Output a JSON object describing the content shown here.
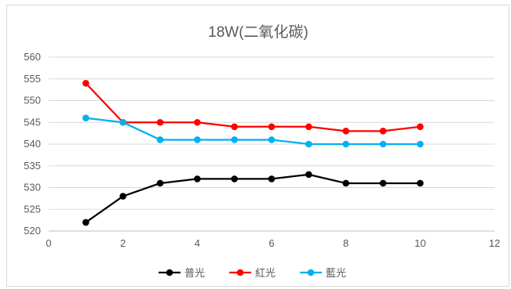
{
  "chart_data": {
    "type": "line",
    "title": "18W(二氧化碳)",
    "xlabel": "",
    "ylabel": "",
    "xlim": [
      0,
      12
    ],
    "ylim": [
      520,
      560
    ],
    "xticks": [
      0,
      2,
      4,
      6,
      8,
      10,
      12
    ],
    "yticks": [
      520,
      525,
      530,
      535,
      540,
      545,
      550,
      555,
      560
    ],
    "grid": "horizontal",
    "legend": "bottom",
    "series": [
      {
        "name": "普光",
        "color": "#000000",
        "x": [
          1,
          2,
          3,
          4,
          5,
          6,
          7,
          8,
          9,
          10
        ],
        "values": [
          522,
          528,
          531,
          532,
          532,
          532,
          533,
          531,
          531,
          531
        ]
      },
      {
        "name": "紅光",
        "color": "#ff0000",
        "x": [
          1,
          2,
          3,
          4,
          5,
          6,
          7,
          8,
          9,
          10
        ],
        "values": [
          554,
          545,
          545,
          545,
          544,
          544,
          544,
          543,
          543,
          544
        ]
      },
      {
        "name": "藍光",
        "color": "#00b0f0",
        "x": [
          1,
          2,
          3,
          4,
          5,
          6,
          7,
          8,
          9,
          10
        ],
        "values": [
          546,
          545,
          541,
          541,
          541,
          541,
          540,
          540,
          540,
          540
        ]
      }
    ]
  }
}
